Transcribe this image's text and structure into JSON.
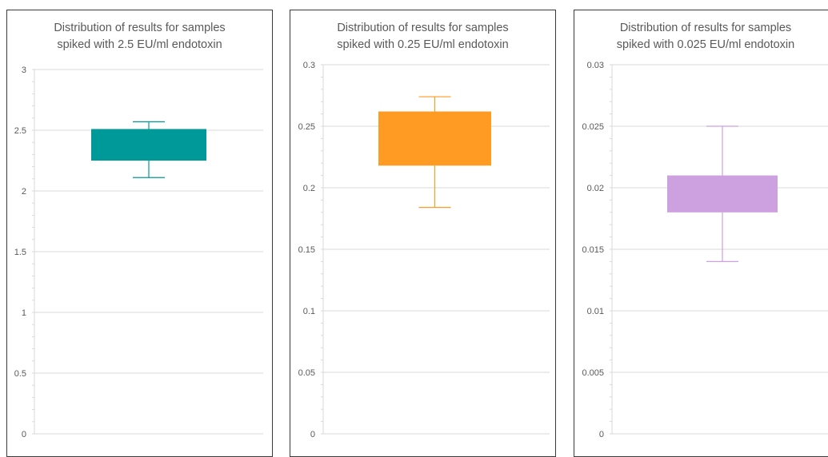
{
  "chart_data": [
    {
      "type": "box",
      "title_lines": [
        "Distribution of results for samples",
        "spiked with 2.5 EU/ml endotoxin"
      ],
      "ylim": [
        0,
        3
      ],
      "yticks": [
        0,
        0.5,
        1,
        1.5,
        2,
        2.5,
        3
      ],
      "ytick_labels": [
        "0",
        "0.5",
        "1",
        "1.5",
        "2",
        "2.5",
        "3"
      ],
      "grid": true,
      "box": {
        "min": 2.11,
        "q1": 2.25,
        "q3": 2.51,
        "max": 2.57
      },
      "color": "#009999"
    },
    {
      "type": "box",
      "title_lines": [
        "Distribution of results for samples",
        "spiked with 0.25 EU/ml endotoxin"
      ],
      "ylim": [
        0,
        0.3
      ],
      "yticks": [
        0,
        0.05,
        0.1,
        0.15,
        0.2,
        0.25,
        0.3
      ],
      "ytick_labels": [
        "0",
        "0.05",
        "0.1",
        "0.15",
        "0.2",
        "0.25",
        "0.3"
      ],
      "grid": true,
      "box": {
        "min": 0.184,
        "q1": 0.218,
        "q3": 0.262,
        "max": 0.274
      },
      "color": "#ff9b23"
    },
    {
      "type": "box",
      "title_lines": [
        "Distribution of results for samples",
        "spiked with 0.025 EU/ml endotoxin"
      ],
      "ylim": [
        0,
        0.03
      ],
      "yticks": [
        0,
        0.005,
        0.01,
        0.015,
        0.02,
        0.025,
        0.03
      ],
      "ytick_labels": [
        "0",
        "0.005",
        "0.01",
        "0.015",
        "0.02",
        "0.025",
        "0.03"
      ],
      "grid": true,
      "box": {
        "min": 0.014,
        "q1": 0.018,
        "q3": 0.021,
        "max": 0.025
      },
      "color": "#cda0e0"
    }
  ]
}
